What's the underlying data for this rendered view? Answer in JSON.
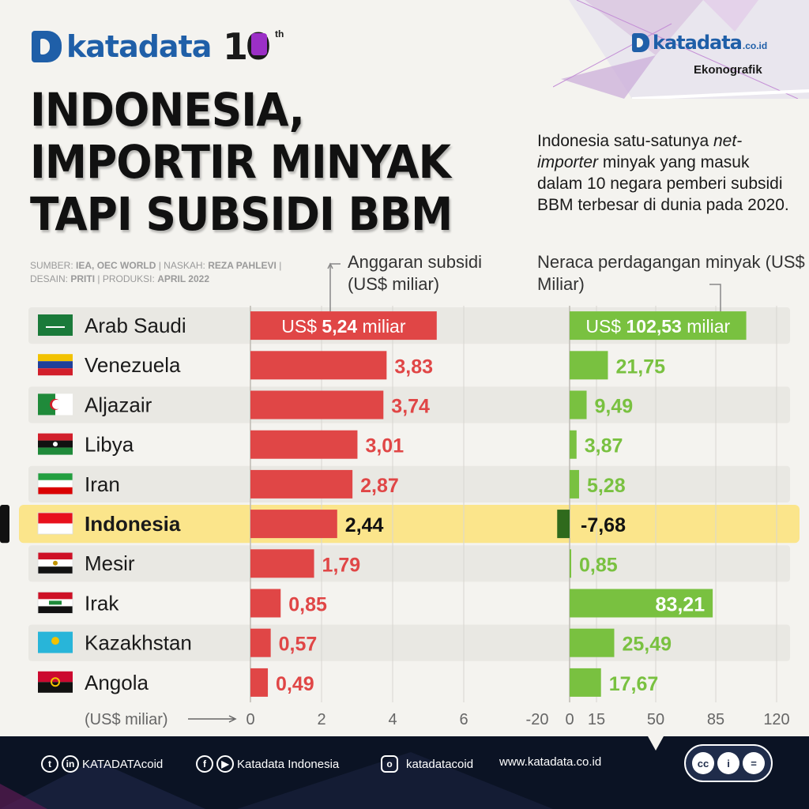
{
  "brand": {
    "logo": "katadata",
    "anniversary_number": "10",
    "anniversary_suffix": "th",
    "logo_right": "katadata",
    "logo_right_suffix": ".co.id",
    "section": "Ekonografik"
  },
  "title": {
    "line1": "INDONESIA,",
    "line2": "IMPORTIR MINYAK",
    "line3": "TAPI SUBSIDI BBM"
  },
  "description": {
    "part1": "Indonesia satu-satunya",
    "part2_italic": "net-importer",
    "part3": "minyak yang masuk dalam 10 negara pemberi subsidi BBM terbesar di dunia pada 2020."
  },
  "source": {
    "label_sumber": "Sumber:",
    "sumber": "IEA, OEC World",
    "label_naskah": "Naskah:",
    "naskah": "Reza Pahlevi",
    "label_desain": "Desain:",
    "desain": "Priti",
    "label_produksi": "Produksi:",
    "produksi": "April 2022"
  },
  "colors": {
    "subsidy": "#e04646",
    "trade_positive": "#79c140",
    "trade_negative": "#2f6a1c",
    "highlight": "#fbe58b",
    "bg": "#f4f3ef",
    "footer": "#0b1324"
  },
  "chart_data": {
    "type": "bar",
    "categories": [
      "Arab Saudi",
      "Venezuela",
      "Aljazair",
      "Libya",
      "Iran",
      "Indonesia",
      "Mesir",
      "Irak",
      "Kazakhstan",
      "Angola"
    ],
    "highlight": "Indonesia",
    "series": [
      {
        "name_bold": "Anggaran subsidi",
        "name_unit": "(US$ miliar)",
        "values": [
          5.24,
          3.83,
          3.74,
          3.01,
          2.87,
          2.44,
          1.79,
          0.85,
          0.57,
          0.49
        ],
        "labels": [
          "5,24",
          "3,83",
          "3,74",
          "3,01",
          "2,87",
          "2,44",
          "1,79",
          "0,85",
          "0,57",
          "0,49"
        ],
        "first_label_prefix": "US$",
        "first_label_suffix": "miliar",
        "xlim": [
          0,
          7.8
        ],
        "ticks": [
          "0",
          "2",
          "4",
          "6"
        ],
        "tick_values": [
          0,
          2,
          4,
          6
        ]
      },
      {
        "name_bold": "Neraca perdagangan minyak",
        "name_unit": "(US$ Miliar)",
        "values": [
          102.53,
          21.75,
          9.49,
          3.87,
          5.28,
          -7.68,
          0.85,
          83.21,
          25.49,
          17.67
        ],
        "labels": [
          "102,53",
          "21,75",
          "9,49",
          "3,87",
          "5,28",
          "-7,68",
          "0,85",
          "83,21",
          "25,49",
          "17,67"
        ],
        "first_label_prefix": "US$",
        "first_label_suffix": "miliar",
        "xlim": [
          -20,
          120
        ],
        "ticks": [
          "-20",
          "0",
          "15",
          "50",
          "85",
          "120"
        ],
        "tick_values": [
          -20,
          0,
          15,
          50,
          85,
          120
        ]
      }
    ],
    "axis_note": "(US$ miliar)"
  },
  "footer": {
    "twitter_linkedin": "KATADATAcoid",
    "facebook_youtube": "Katadata Indonesia",
    "instagram": "katadatacoid",
    "website": "www.katadata.co.id",
    "license_icons": [
      "cc",
      "i",
      "="
    ]
  }
}
